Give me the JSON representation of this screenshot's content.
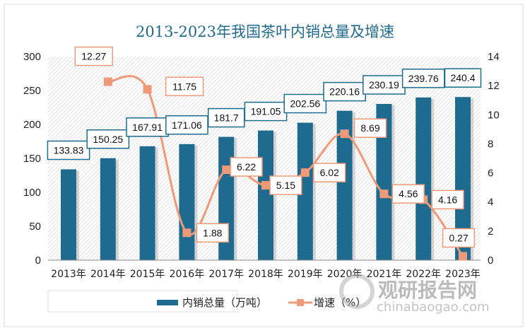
{
  "chart_data": {
    "type": "bar+line",
    "title": "2013-2023年我国茶叶内销总量及增速",
    "categories": [
      "2013年",
      "2014年",
      "2015年",
      "2016年",
      "2017年",
      "2018年",
      "2019年",
      "2020年",
      "2021年",
      "2022年",
      "2023年"
    ],
    "series": [
      {
        "name": "内销总量（万吨）",
        "type": "bar",
        "axis": "left",
        "color": "#1f6b8f",
        "values": [
          133.83,
          150.25,
          167.91,
          171.06,
          181.7,
          191.05,
          202.56,
          220.16,
          230.19,
          239.76,
          240.4
        ],
        "labels": [
          "133.83",
          "150.25",
          "167.91",
          "171.06",
          "181.7",
          "191.05",
          "202.56",
          "220.16",
          "230.19",
          "239.76",
          "240.4"
        ]
      },
      {
        "name": "增速（%）",
        "type": "line",
        "axis": "right",
        "color": "#ee9a78",
        "values": [
          null,
          12.27,
          11.75,
          1.88,
          6.22,
          5.15,
          6.02,
          8.69,
          4.56,
          4.16,
          0.27
        ],
        "labels": [
          null,
          "12.27",
          "11.75",
          "1.88",
          "6.22",
          "5.15",
          "6.02",
          "8.69",
          "4.56",
          "4.16",
          "0.27"
        ]
      }
    ],
    "y_left": {
      "range": [
        0,
        300
      ],
      "ticks": [
        "0",
        "50",
        "100",
        "150",
        "200",
        "250",
        "300"
      ]
    },
    "y_right": {
      "range": [
        0,
        14
      ],
      "ticks": [
        "0",
        "2",
        "4",
        "6",
        "8",
        "10",
        "12",
        "14"
      ]
    },
    "legend_position": "bottom",
    "grid": false
  },
  "watermark": {
    "name": "观研报告网",
    "url": "chinabaogao.com"
  }
}
